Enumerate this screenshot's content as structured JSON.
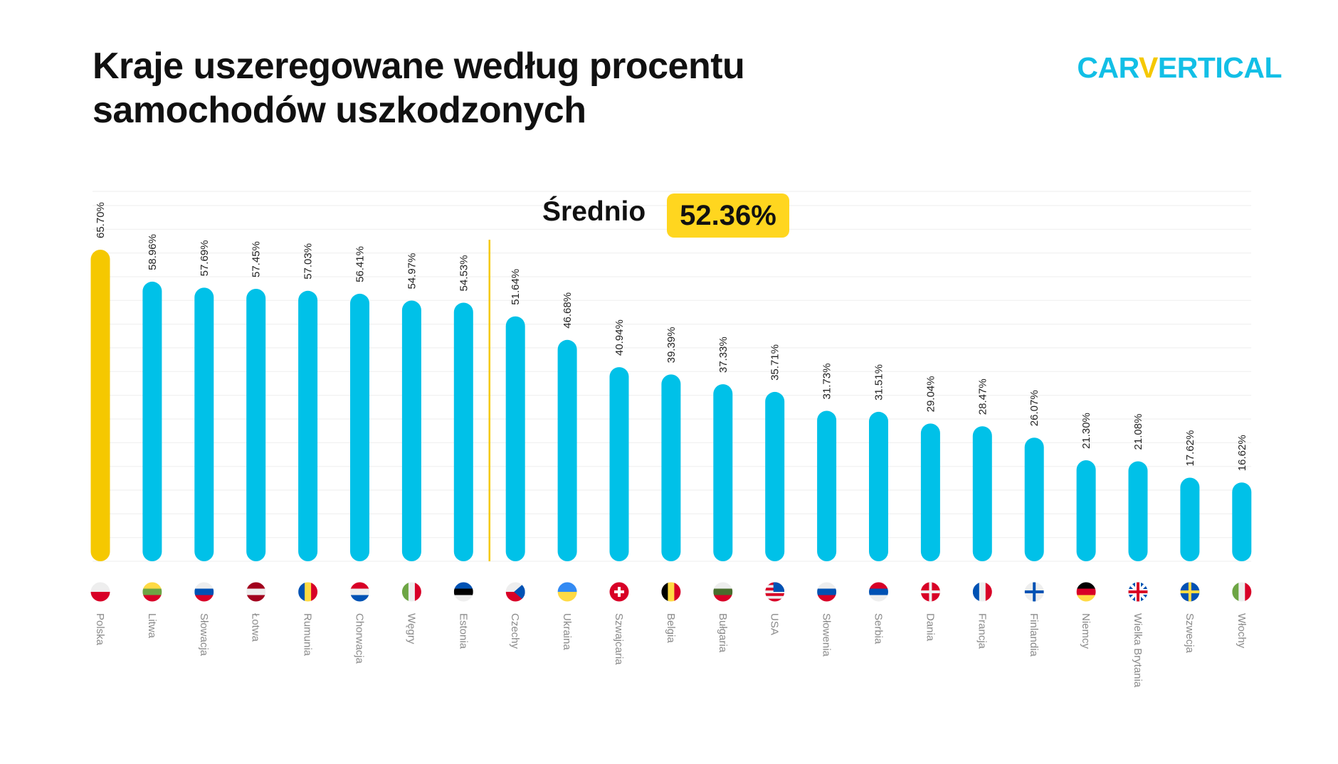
{
  "header": {
    "title_line1": "Kraje uszeregowane według procentu",
    "title_line2": "samochodów uszkodzonych",
    "logo": {
      "part1": "CAR",
      "part2": "V",
      "part3": "ERTICAL"
    }
  },
  "colors": {
    "highlight": "#F5C800",
    "bar": "#00C1E8",
    "average_line": "#F5C800",
    "badge": "#FFD61F",
    "grid": "#F0F0F0",
    "category_text": "#8A8A8A"
  },
  "chart_data": {
    "type": "bar",
    "title": "Kraje uszeregowane według procentu samochodów uszkodzonych",
    "xlabel": "",
    "ylabel": "",
    "ylim": [
      0,
      78
    ],
    "grid": true,
    "grid_step": 5,
    "average": {
      "label": "Średnio",
      "value": 52.36,
      "value_label": "52.36%"
    },
    "highlighted_category": "Polska",
    "categories": [
      "Polska",
      "Litwa",
      "Słowacja",
      "Łotwa",
      "Rumunia",
      "Chorwacja",
      "Węgry",
      "Estonia",
      "Czechy",
      "Ukraina",
      "Szwajcaria",
      "Belgia",
      "Bułgaria",
      "USA",
      "Słowenia",
      "Serbia",
      "Dania",
      "Francja",
      "Finlandia",
      "Niemcy",
      "Wielka Brytania",
      "Szwecja",
      "Włochy"
    ],
    "values": [
      65.7,
      58.96,
      57.69,
      57.45,
      57.03,
      56.41,
      54.97,
      54.53,
      51.64,
      46.68,
      40.94,
      39.39,
      37.33,
      35.71,
      31.73,
      31.51,
      29.04,
      28.47,
      26.07,
      21.3,
      21.08,
      17.62,
      16.62
    ],
    "value_labels": [
      "65.70%",
      "58.96%",
      "57.69%",
      "57.45%",
      "57.03%",
      "56.41%",
      "54.97%",
      "54.53%",
      "51.64%",
      "46.68%",
      "40.94%",
      "39.39%",
      "37.33%",
      "35.71%",
      "31.73%",
      "31.51%",
      "29.04%",
      "28.47%",
      "26.07%",
      "21.30%",
      "21.08%",
      "17.62%",
      "16.62%"
    ],
    "flags": [
      {
        "dir": "h",
        "colors": [
          "#EEEEEE",
          "#D80027"
        ]
      },
      {
        "dir": "h",
        "colors": [
          "#FFDA44",
          "#6DA544",
          "#D80027"
        ]
      },
      {
        "dir": "h",
        "colors": [
          "#EEEEEE",
          "#0052B4",
          "#D80027"
        ]
      },
      {
        "dir": "h",
        "colors": [
          "#A2001D",
          "#EEEEEE",
          "#A2001D"
        ]
      },
      {
        "dir": "v",
        "colors": [
          "#0052B4",
          "#FFDA44",
          "#D80027"
        ]
      },
      {
        "dir": "h",
        "colors": [
          "#D80027",
          "#EEEEEE",
          "#0052B4"
        ]
      },
      {
        "dir": "v",
        "colors": [
          "#6DA544",
          "#EEEEEE",
          "#D80027"
        ]
      },
      {
        "dir": "h",
        "colors": [
          "#0052B4",
          "#000000",
          "#EEEEEE"
        ]
      },
      {
        "dir": "h",
        "colors": [
          "#EEEEEE",
          "#D80027"
        ],
        "triangle": "#0052B4"
      },
      {
        "dir": "h",
        "colors": [
          "#338AF3",
          "#FFDA44"
        ]
      },
      {
        "dir": "h",
        "colors": [
          "#D80027"
        ],
        "cross": "#FFFFFF",
        "swiss": true
      },
      {
        "dir": "v",
        "colors": [
          "#000000",
          "#FFDA44",
          "#D80027"
        ]
      },
      {
        "dir": "h",
        "colors": [
          "#EEEEEE",
          "#496E2D",
          "#D80027"
        ]
      },
      {
        "dir": "h",
        "colors": [
          "#D80027",
          "#EEEEEE",
          "#D80027",
          "#EEEEEE",
          "#D80027",
          "#EEEEEE",
          "#D80027"
        ],
        "canton": "#0052B4"
      },
      {
        "dir": "h",
        "colors": [
          "#EEEEEE",
          "#0052B4",
          "#D80027"
        ]
      },
      {
        "dir": "h",
        "colors": [
          "#D80027",
          "#0052B4",
          "#EEEEEE"
        ]
      },
      {
        "dir": "h",
        "colors": [
          "#D80027"
        ],
        "cross": "#EEEEEE"
      },
      {
        "dir": "v",
        "colors": [
          "#0052B4",
          "#EEEEEE",
          "#D80027"
        ]
      },
      {
        "dir": "h",
        "colors": [
          "#EEEEEE"
        ],
        "cross": "#0052B4"
      },
      {
        "dir": "h",
        "colors": [
          "#000000",
          "#D80027",
          "#FFDA44"
        ]
      },
      {
        "dir": "h",
        "colors": [
          "#0052B4"
        ],
        "cross": "#D80027",
        "uk": true
      },
      {
        "dir": "h",
        "colors": [
          "#0052B4"
        ],
        "cross": "#FFDA44"
      },
      {
        "dir": "v",
        "colors": [
          "#6DA544",
          "#EEEEEE",
          "#D80027"
        ]
      }
    ]
  }
}
